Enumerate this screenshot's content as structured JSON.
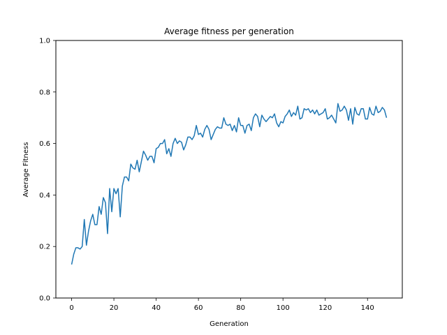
{
  "chart_data": {
    "type": "line",
    "title": "Average fitness per generation",
    "xlabel": "Generation",
    "ylabel": "Average Fitness",
    "xlim": [
      -7.45,
      156.45
    ],
    "ylim": [
      0.0,
      1.0
    ],
    "xticks": [
      0,
      20,
      40,
      60,
      80,
      100,
      120,
      140
    ],
    "yticks": [
      0.0,
      0.2,
      0.4,
      0.6,
      0.8,
      1.0
    ],
    "xtick_labels": [
      "0",
      "20",
      "40",
      "60",
      "80",
      "100",
      "120",
      "140"
    ],
    "ytick_labels": [
      "0.0",
      "0.2",
      "0.4",
      "0.6",
      "0.8",
      "1.0"
    ],
    "grid": false,
    "series": [
      {
        "color": "#1f77b4",
        "x": [
          0,
          1,
          2,
          3,
          4,
          5,
          6,
          7,
          8,
          9,
          10,
          11,
          12,
          13,
          14,
          15,
          16,
          17,
          18,
          19,
          20,
          21,
          22,
          23,
          24,
          25,
          26,
          27,
          28,
          29,
          30,
          31,
          32,
          33,
          34,
          35,
          36,
          37,
          38,
          39,
          40,
          41,
          42,
          43,
          44,
          45,
          46,
          47,
          48,
          49,
          50,
          51,
          52,
          53,
          54,
          55,
          56,
          57,
          58,
          59,
          60,
          61,
          62,
          63,
          64,
          65,
          66,
          67,
          68,
          69,
          70,
          71,
          72,
          73,
          74,
          75,
          76,
          77,
          78,
          79,
          80,
          81,
          82,
          83,
          84,
          85,
          86,
          87,
          88,
          89,
          90,
          91,
          92,
          93,
          94,
          95,
          96,
          97,
          98,
          99,
          100,
          101,
          102,
          103,
          104,
          105,
          106,
          107,
          108,
          109,
          110,
          111,
          112,
          113,
          114,
          115,
          116,
          117,
          118,
          119,
          120,
          121,
          122,
          123,
          124,
          125,
          126,
          127,
          128,
          129,
          130,
          131,
          132,
          133,
          134,
          135,
          136,
          137,
          138,
          139,
          140,
          141,
          142,
          143,
          144,
          145,
          146,
          147,
          148,
          149
        ],
        "y": [
          0.13,
          0.17,
          0.195,
          0.195,
          0.19,
          0.2,
          0.305,
          0.205,
          0.26,
          0.3,
          0.325,
          0.285,
          0.285,
          0.355,
          0.325,
          0.39,
          0.37,
          0.25,
          0.425,
          0.335,
          0.425,
          0.405,
          0.425,
          0.315,
          0.435,
          0.47,
          0.47,
          0.455,
          0.52,
          0.505,
          0.5,
          0.535,
          0.49,
          0.53,
          0.57,
          0.555,
          0.535,
          0.55,
          0.55,
          0.525,
          0.58,
          0.585,
          0.6,
          0.6,
          0.615,
          0.56,
          0.58,
          0.55,
          0.6,
          0.62,
          0.6,
          0.61,
          0.605,
          0.575,
          0.595,
          0.625,
          0.625,
          0.615,
          0.63,
          0.67,
          0.635,
          0.64,
          0.625,
          0.655,
          0.67,
          0.655,
          0.615,
          0.635,
          0.655,
          0.665,
          0.66,
          0.66,
          0.7,
          0.675,
          0.67,
          0.675,
          0.65,
          0.67,
          0.645,
          0.7,
          0.67,
          0.67,
          0.64,
          0.67,
          0.675,
          0.65,
          0.7,
          0.715,
          0.705,
          0.665,
          0.71,
          0.695,
          0.685,
          0.695,
          0.705,
          0.7,
          0.715,
          0.68,
          0.665,
          0.685,
          0.68,
          0.705,
          0.715,
          0.73,
          0.705,
          0.72,
          0.71,
          0.745,
          0.695,
          0.7,
          0.735,
          0.73,
          0.735,
          0.72,
          0.73,
          0.715,
          0.73,
          0.71,
          0.715,
          0.72,
          0.735,
          0.695,
          0.7,
          0.71,
          0.695,
          0.68,
          0.755,
          0.725,
          0.73,
          0.745,
          0.73,
          0.69,
          0.735,
          0.675,
          0.74,
          0.715,
          0.71,
          0.735,
          0.735,
          0.695,
          0.695,
          0.74,
          0.715,
          0.71,
          0.745,
          0.72,
          0.725,
          0.74,
          0.73,
          0.7
        ]
      }
    ]
  }
}
